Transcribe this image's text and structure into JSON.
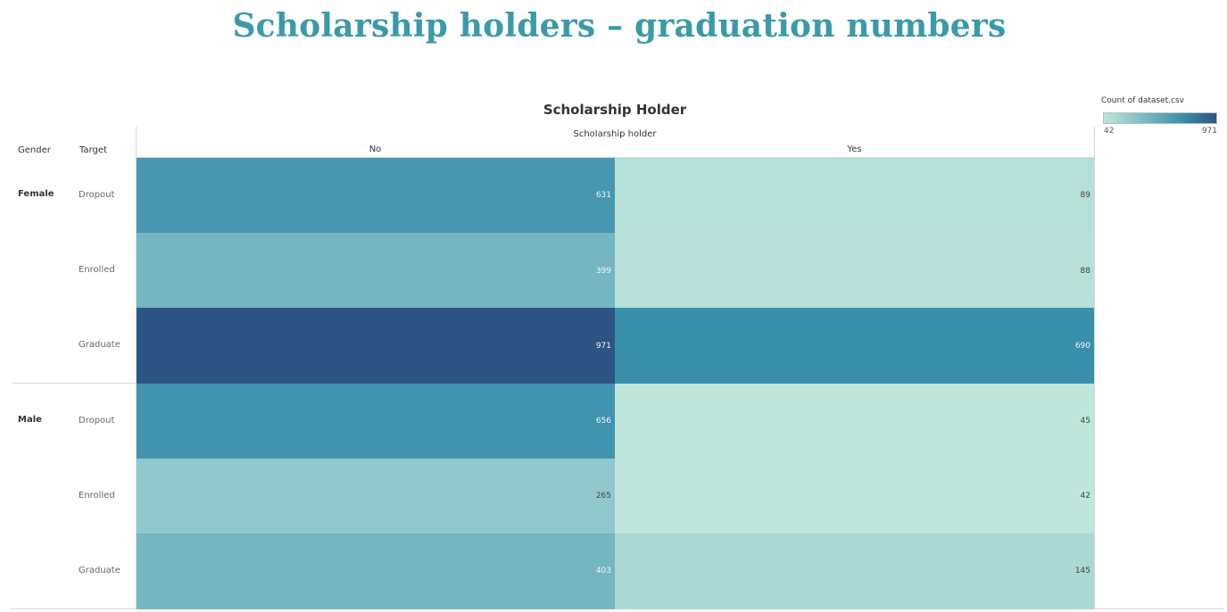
{
  "page_title": "Scholarship holders – graduation numbers",
  "chart_data": {
    "type": "heatmap",
    "title": "Scholarship Holder",
    "column_field": "Scholarship holder",
    "row_headers": [
      "Gender",
      "Target"
    ],
    "columns": [
      "No",
      "Yes"
    ],
    "rows": [
      {
        "gender": "Female",
        "target": "Dropout",
        "values": [
          631,
          89
        ]
      },
      {
        "gender": "",
        "target": "Enrolled",
        "values": [
          399,
          88
        ]
      },
      {
        "gender": "",
        "target": "Graduate",
        "values": [
          971,
          690
        ]
      },
      {
        "gender": "Male",
        "target": "Dropout",
        "values": [
          656,
          45
        ]
      },
      {
        "gender": "",
        "target": "Enrolled",
        "values": [
          265,
          42
        ]
      },
      {
        "gender": "",
        "target": "Graduate",
        "values": [
          403,
          145
        ]
      }
    ],
    "legend": {
      "title": "Count of dataset.csv",
      "min": 42,
      "max": 971,
      "min_label": "42",
      "max_label": "971",
      "color_low": "#bfe6db",
      "color_mid": "#3a8fab",
      "color_high": "#2c5585"
    }
  }
}
